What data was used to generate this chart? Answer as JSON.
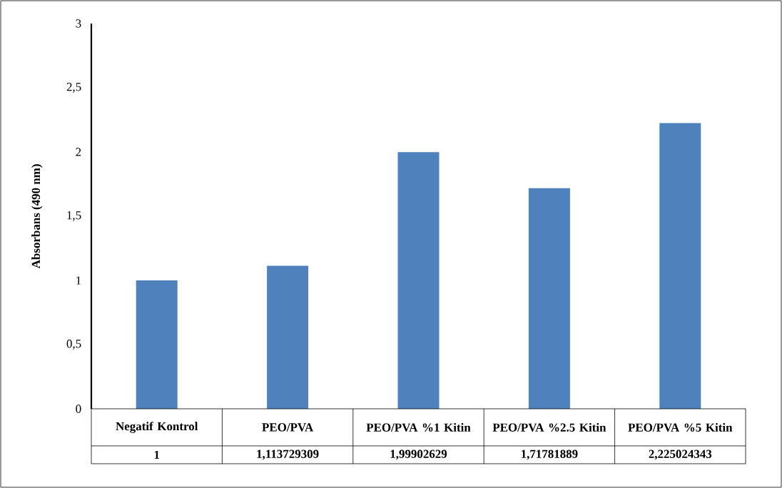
{
  "chart_data": {
    "type": "bar",
    "ylabel": "Absorbans (490 nm)",
    "categories": [
      "Negatif Kontrol",
      "PEO/PVA",
      "PEO/PVA %1 Kitin",
      "PEO/PVA %2.5 Kitin",
      "PEO/PVA %5 Kitin"
    ],
    "values": [
      1,
      1.113729309,
      1.99902629,
      1.71781889,
      2.225024343
    ],
    "value_labels": [
      "1",
      "1,113729309",
      "1,99902629",
      "1,71781889",
      "2,225024343"
    ],
    "color": "#4f81bd",
    "ylim": [
      0,
      3
    ],
    "yticks": [
      0,
      {
        "value": 0.5,
        "label": "0,5"
      },
      1,
      {
        "value": 1.5,
        "label": "1,5"
      },
      2,
      {
        "value": 2.5,
        "label": "2,5"
      },
      3
    ]
  }
}
